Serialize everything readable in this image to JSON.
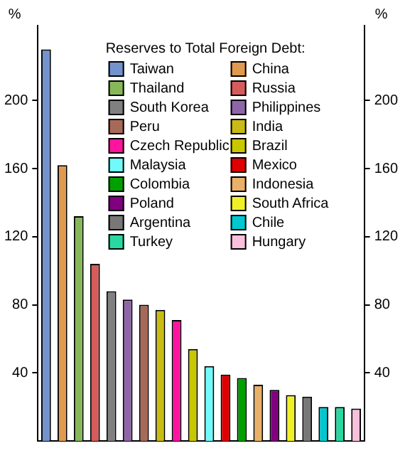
{
  "chart_data": {
    "type": "bar",
    "legend_title": "Reserves to Total Foreign Debt:",
    "legend": "top right",
    "ylabel": "%",
    "y2label": "%",
    "categories": [
      null,
      null,
      null,
      null,
      null,
      null,
      null,
      null,
      null,
      null,
      null,
      null,
      null,
      null,
      null,
      null,
      null,
      null,
      null,
      null
    ],
    "series": [
      {
        "name": "Taiwan",
        "color": "#7393cc",
        "values": [
          230,
          null,
          null,
          null,
          null,
          null,
          null,
          null,
          null,
          null,
          null,
          null,
          null,
          null,
          null,
          null,
          null,
          null,
          null,
          null
        ]
      },
      {
        "name": "China",
        "color": "#e09a50",
        "values": [
          null,
          162,
          null,
          null,
          null,
          null,
          null,
          null,
          null,
          null,
          null,
          null,
          null,
          null,
          null,
          null,
          null,
          null,
          null,
          null
        ]
      },
      {
        "name": "Thailand",
        "color": "#86b85a",
        "values": [
          null,
          null,
          132,
          null,
          null,
          null,
          null,
          null,
          null,
          null,
          null,
          null,
          null,
          null,
          null,
          null,
          null,
          null,
          null,
          null
        ]
      },
      {
        "name": "Russia",
        "color": "#d65c5c",
        "values": [
          null,
          null,
          null,
          104,
          null,
          null,
          null,
          null,
          null,
          null,
          null,
          null,
          null,
          null,
          null,
          null,
          null,
          null,
          null,
          null
        ]
      },
      {
        "name": "South Korea",
        "color": "#808080",
        "values": [
          null,
          null,
          null,
          null,
          88,
          null,
          null,
          null,
          null,
          null,
          null,
          null,
          null,
          null,
          null,
          null,
          null,
          null,
          null,
          null
        ]
      },
      {
        "name": "Philippines",
        "color": "#8e66a8",
        "values": [
          null,
          null,
          null,
          null,
          null,
          83,
          null,
          null,
          null,
          null,
          null,
          null,
          null,
          null,
          null,
          null,
          null,
          null,
          null,
          null
        ]
      },
      {
        "name": "Peru",
        "color": "#a86a58",
        "values": [
          null,
          null,
          null,
          null,
          null,
          null,
          80,
          null,
          null,
          null,
          null,
          null,
          null,
          null,
          null,
          null,
          null,
          null,
          null,
          null
        ]
      },
      {
        "name": "India",
        "color": "#c8bc14",
        "values": [
          null,
          null,
          null,
          null,
          null,
          null,
          null,
          77,
          null,
          null,
          null,
          null,
          null,
          null,
          null,
          null,
          null,
          null,
          null,
          null
        ]
      },
      {
        "name": "Czech Republic",
        "color": "#ff14a0",
        "values": [
          null,
          null,
          null,
          null,
          null,
          null,
          null,
          null,
          71,
          null,
          null,
          null,
          null,
          null,
          null,
          null,
          null,
          null,
          null,
          null
        ]
      },
      {
        "name": "Brazil",
        "color": "#c8c800",
        "values": [
          null,
          null,
          null,
          null,
          null,
          null,
          null,
          null,
          null,
          54,
          null,
          null,
          null,
          null,
          null,
          null,
          null,
          null,
          null,
          null
        ]
      },
      {
        "name": "Malaysia",
        "color": "#70fafa",
        "values": [
          null,
          null,
          null,
          null,
          null,
          null,
          null,
          null,
          null,
          null,
          44,
          null,
          null,
          null,
          null,
          null,
          null,
          null,
          null,
          null
        ]
      },
      {
        "name": "Mexico",
        "color": "#e00000",
        "values": [
          null,
          null,
          null,
          null,
          null,
          null,
          null,
          null,
          null,
          null,
          null,
          39,
          null,
          null,
          null,
          null,
          null,
          null,
          null,
          null
        ]
      },
      {
        "name": "Colombia",
        "color": "#00a000",
        "values": [
          null,
          null,
          null,
          null,
          null,
          null,
          null,
          null,
          null,
          null,
          null,
          null,
          37,
          null,
          null,
          null,
          null,
          null,
          null,
          null
        ]
      },
      {
        "name": "Indonesia",
        "color": "#e8b068",
        "values": [
          null,
          null,
          null,
          null,
          null,
          null,
          null,
          null,
          null,
          null,
          null,
          null,
          null,
          33,
          null,
          null,
          null,
          null,
          null,
          null
        ]
      },
      {
        "name": "Poland",
        "color": "#800080",
        "values": [
          null,
          null,
          null,
          null,
          null,
          null,
          null,
          null,
          null,
          null,
          null,
          null,
          null,
          null,
          30,
          null,
          null,
          null,
          null,
          null
        ]
      },
      {
        "name": "South Africa",
        "color": "#f0f028",
        "values": [
          null,
          null,
          null,
          null,
          null,
          null,
          null,
          null,
          null,
          null,
          null,
          null,
          null,
          null,
          null,
          27,
          null,
          null,
          null,
          null
        ]
      },
      {
        "name": "Argentina",
        "color": "#787878",
        "values": [
          null,
          null,
          null,
          null,
          null,
          null,
          null,
          null,
          null,
          null,
          null,
          null,
          null,
          null,
          null,
          null,
          26,
          null,
          null,
          null
        ]
      },
      {
        "name": "Chile",
        "color": "#00c8d0",
        "values": [
          null,
          null,
          null,
          null,
          null,
          null,
          null,
          null,
          null,
          null,
          null,
          null,
          null,
          null,
          null,
          null,
          null,
          20,
          null,
          null
        ]
      },
      {
        "name": "Turkey",
        "color": "#28d8a0",
        "values": [
          null,
          null,
          null,
          null,
          null,
          null,
          null,
          null,
          null,
          null,
          null,
          null,
          null,
          null,
          null,
          null,
          null,
          null,
          20,
          null
        ]
      },
      {
        "name": "Hungary",
        "color": "#f8c0dc",
        "values": [
          null,
          null,
          null,
          null,
          null,
          null,
          null,
          null,
          null,
          null,
          null,
          null,
          null,
          null,
          null,
          null,
          null,
          null,
          null,
          19
        ]
      }
    ],
    "ylim": [
      0,
      244
    ],
    "yticks": [
      40,
      80,
      120,
      160,
      200
    ],
    "y2lim": [
      0,
      244
    ],
    "y2ticks": [
      40,
      80,
      120,
      160,
      200
    ],
    "tick_labels": "y"
  }
}
